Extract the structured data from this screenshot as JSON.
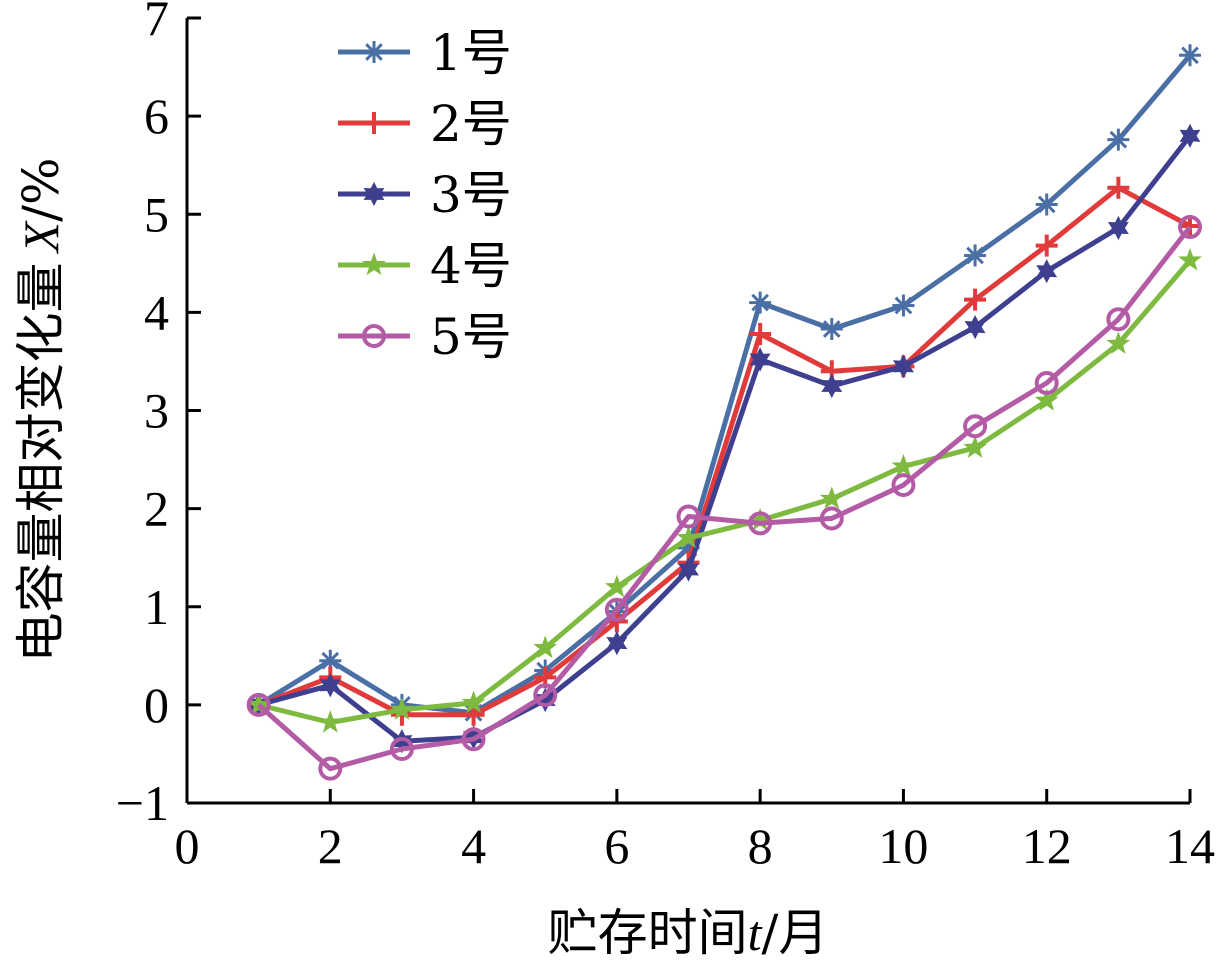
{
  "chart_data": {
    "type": "line",
    "title": "",
    "xlabel_prefix": "贮存时间",
    "xlabel_var": "t",
    "xlabel_suffix": "/月",
    "ylabel_prefix": "电容量相对变化量",
    "ylabel_var": "X",
    "ylabel_suffix": "/%",
    "xlim": [
      0,
      14
    ],
    "ylim": [
      -1,
      7
    ],
    "xticks": [
      0,
      2,
      4,
      6,
      8,
      10,
      12,
      14
    ],
    "yticks": [
      -1,
      0,
      1,
      2,
      3,
      4,
      5,
      6,
      7
    ],
    "xtick_labels": [
      "0",
      "2",
      "4",
      "6",
      "8",
      "10",
      "12",
      "14"
    ],
    "ytick_labels": [
      "−1",
      "0",
      "1",
      "2",
      "3",
      "4",
      "5",
      "6",
      "7"
    ],
    "grid": false,
    "legend_position": "top-left",
    "x": [
      1,
      2,
      3,
      4,
      5,
      6,
      7,
      8,
      9,
      10,
      11,
      12,
      13,
      14
    ],
    "series": [
      {
        "name": "1号",
        "marker": "asterisk",
        "color": "#4a6fa5",
        "values": [
          0,
          0.45,
          0,
          -0.08,
          0.35,
          0.95,
          1.6,
          4.1,
          3.83,
          4.07,
          4.58,
          5.1,
          5.76,
          6.62
        ]
      },
      {
        "name": "2号",
        "marker": "plus",
        "color": "#e03a3a",
        "values": [
          0,
          0.28,
          -0.1,
          -0.1,
          0.28,
          0.85,
          1.45,
          3.78,
          3.4,
          3.45,
          4.13,
          4.68,
          5.27,
          4.88
        ]
      },
      {
        "name": "3号",
        "marker": "star6",
        "color": "#3e3f8f",
        "values": [
          0,
          0.2,
          -0.37,
          -0.33,
          0.05,
          0.63,
          1.38,
          3.52,
          3.25,
          3.45,
          3.85,
          4.42,
          4.86,
          5.8
        ]
      },
      {
        "name": "4号",
        "marker": "star5",
        "color": "#7dba3f",
        "values": [
          0,
          -0.18,
          -0.05,
          0.02,
          0.58,
          1.2,
          1.7,
          1.88,
          2.1,
          2.43,
          2.62,
          3.1,
          3.68,
          4.53
        ]
      },
      {
        "name": "5号",
        "marker": "circle",
        "color": "#b45ba6",
        "values": [
          0,
          -0.65,
          -0.45,
          -0.35,
          0.1,
          0.97,
          1.92,
          1.85,
          1.9,
          2.24,
          2.84,
          3.28,
          3.93,
          4.87
        ]
      }
    ]
  }
}
